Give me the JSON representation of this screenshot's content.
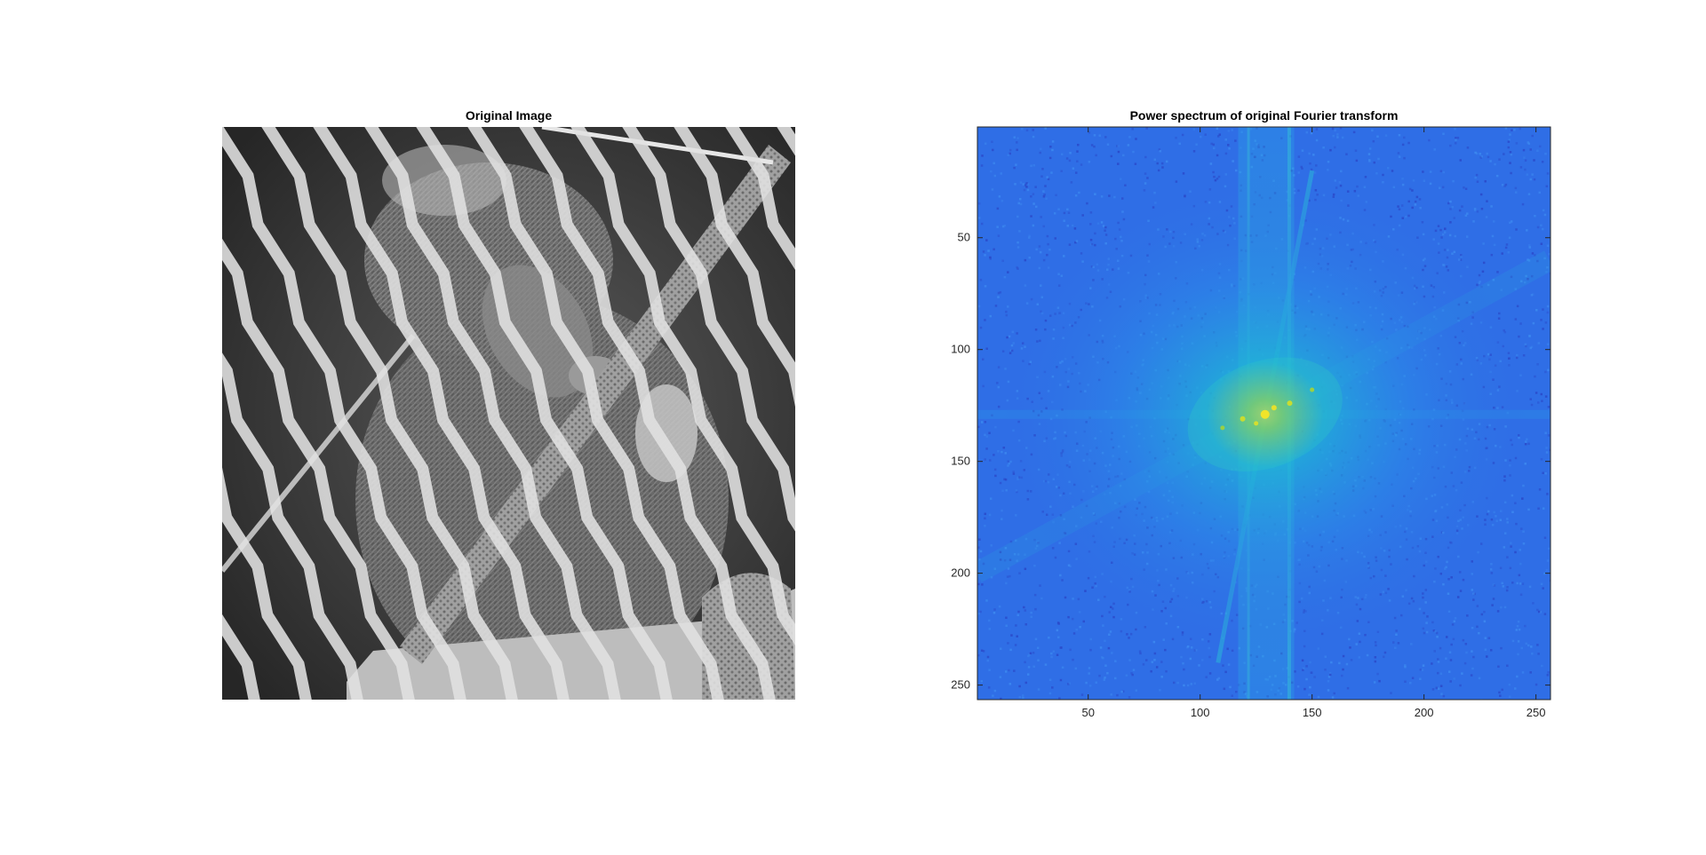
{
  "window": {},
  "panels": {
    "left": {
      "title": "Original Image"
    },
    "right": {
      "title": "Power spectrum of original Fourier transform"
    }
  },
  "chart_data": [
    {
      "type": "image",
      "title": "Original Image",
      "description_colormap": "gray",
      "axes_visible": false
    },
    {
      "type": "heatmap",
      "title": "Power spectrum of original Fourier transform",
      "xlabel": "",
      "ylabel": "",
      "colormap": "parula",
      "xlim": [
        0.5,
        256.5
      ],
      "ylim": [
        0.5,
        256.5
      ],
      "y_reversed": true,
      "xticks": [
        50,
        100,
        150,
        200,
        250
      ],
      "yticks": [
        50,
        100,
        150,
        200,
        250
      ],
      "center": [
        129,
        129
      ],
      "colors": {
        "background": "#2f6ee6",
        "mid": "#1fb4d8",
        "peak": "#f0e42a"
      }
    }
  ]
}
